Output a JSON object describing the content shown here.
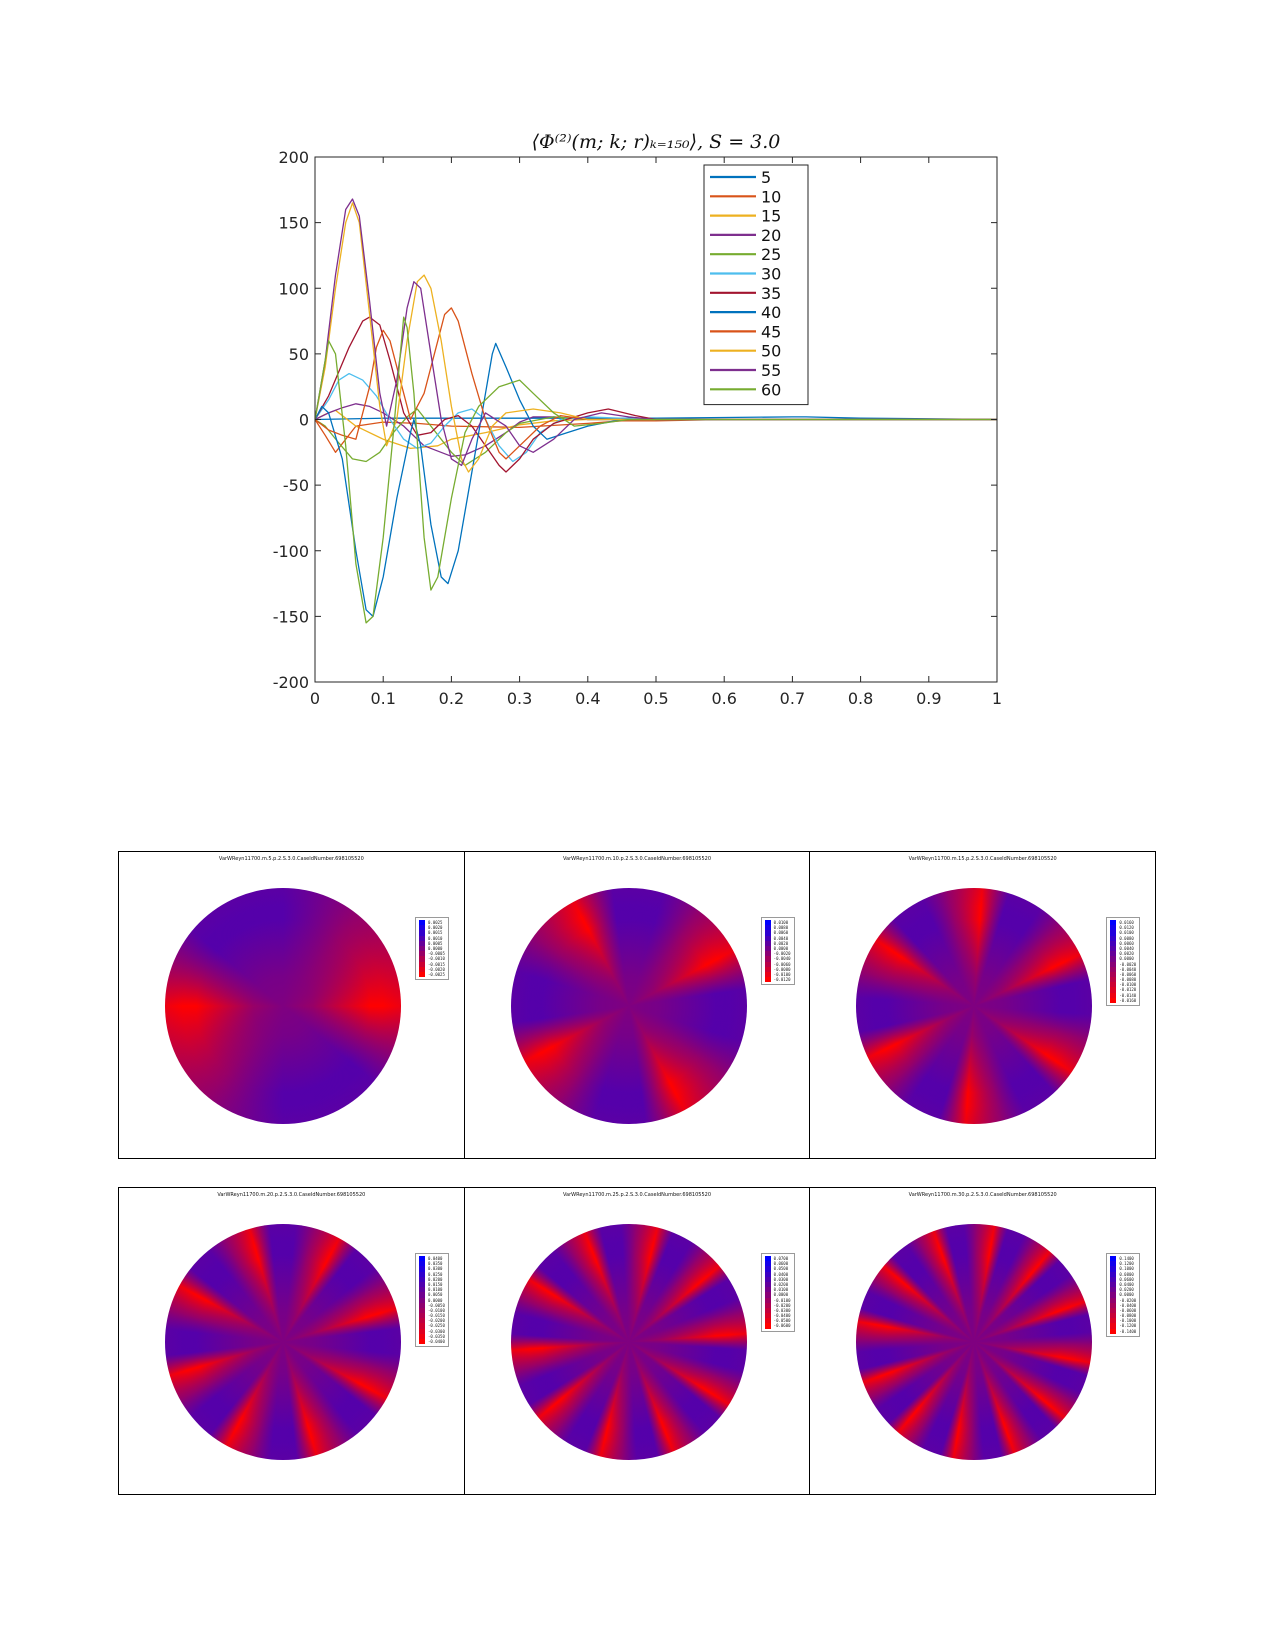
{
  "chart_data": {
    "type": "line",
    "title": "⟨Φ⁽²⁾(m; k; r)ₖ₌₁₅₀⟩, S = 3.0",
    "xlabel": "",
    "ylabel": "",
    "xlim": [
      0,
      1
    ],
    "ylim": [
      -200,
      200
    ],
    "x_ticks": [
      "0",
      "0.1",
      "0.2",
      "0.3",
      "0.4",
      "0.5",
      "0.6",
      "0.7",
      "0.8",
      "0.9",
      "1"
    ],
    "y_ticks": [
      "200",
      "150",
      "100",
      "50",
      "0",
      "-50",
      "-100",
      "-150",
      "-200"
    ],
    "grid": false,
    "legend_position": "top-right",
    "series": [
      {
        "name": "5",
        "color": "#0072BD",
        "points": [
          [
            0,
            0
          ],
          [
            0.1,
            1
          ],
          [
            0.2,
            1
          ],
          [
            0.3,
            1
          ],
          [
            0.4,
            1
          ],
          [
            0.5,
            1
          ],
          [
            0.6,
            1.5
          ],
          [
            0.7,
            2
          ],
          [
            0.72,
            2
          ],
          [
            0.8,
            1
          ],
          [
            0.9,
            0.5
          ],
          [
            1,
            0
          ]
        ]
      },
      {
        "name": "10",
        "color": "#D95319",
        "points": [
          [
            0,
            0
          ],
          [
            0.015,
            -12
          ],
          [
            0.03,
            -25
          ],
          [
            0.06,
            -5
          ],
          [
            0.1,
            -2
          ],
          [
            0.15,
            -3
          ],
          [
            0.2,
            -5
          ],
          [
            0.3,
            -6
          ],
          [
            0.4,
            -3
          ],
          [
            0.45,
            -1
          ],
          [
            0.5,
            -1
          ],
          [
            0.6,
            0
          ],
          [
            1,
            0
          ]
        ]
      },
      {
        "name": "15",
        "color": "#EDB120",
        "points": [
          [
            0,
            0
          ],
          [
            0.015,
            4
          ],
          [
            0.03,
            7
          ],
          [
            0.06,
            -5
          ],
          [
            0.1,
            -15
          ],
          [
            0.14,
            -22
          ],
          [
            0.18,
            -20
          ],
          [
            0.2,
            -15
          ],
          [
            0.25,
            -10
          ],
          [
            0.3,
            -4
          ],
          [
            0.35,
            -1
          ],
          [
            0.4,
            0
          ],
          [
            1,
            0
          ]
        ]
      },
      {
        "name": "20",
        "color": "#7E2F8E",
        "points": [
          [
            0,
            0
          ],
          [
            0.02,
            5
          ],
          [
            0.04,
            9
          ],
          [
            0.06,
            12
          ],
          [
            0.08,
            10
          ],
          [
            0.1,
            5
          ],
          [
            0.13,
            -5
          ],
          [
            0.16,
            -20
          ],
          [
            0.2,
            -28
          ],
          [
            0.22,
            -27
          ],
          [
            0.25,
            -20
          ],
          [
            0.28,
            -10
          ],
          [
            0.3,
            -2
          ],
          [
            0.32,
            2
          ],
          [
            0.35,
            2
          ],
          [
            0.4,
            0
          ],
          [
            0.5,
            0
          ],
          [
            1,
            0
          ]
        ]
      },
      {
        "name": "25",
        "color": "#77AC30",
        "points": [
          [
            0,
            0
          ],
          [
            0.015,
            -5
          ],
          [
            0.035,
            -18
          ],
          [
            0.055,
            -30
          ],
          [
            0.075,
            -32
          ],
          [
            0.095,
            -25
          ],
          [
            0.115,
            -10
          ],
          [
            0.135,
            2
          ],
          [
            0.15,
            8
          ],
          [
            0.17,
            -5
          ],
          [
            0.2,
            -25
          ],
          [
            0.22,
            -35
          ],
          [
            0.25,
            -25
          ],
          [
            0.28,
            -10
          ],
          [
            0.3,
            -3
          ],
          [
            0.35,
            2
          ],
          [
            0.4,
            0
          ],
          [
            0.5,
            0
          ],
          [
            1,
            0
          ]
        ]
      },
      {
        "name": "30",
        "color": "#4DBEEE",
        "points": [
          [
            0,
            0
          ],
          [
            0.02,
            15
          ],
          [
            0.035,
            30
          ],
          [
            0.05,
            35
          ],
          [
            0.07,
            30
          ],
          [
            0.09,
            18
          ],
          [
            0.11,
            0
          ],
          [
            0.13,
            -15
          ],
          [
            0.15,
            -22
          ],
          [
            0.17,
            -18
          ],
          [
            0.19,
            -5
          ],
          [
            0.21,
            5
          ],
          [
            0.23,
            8
          ],
          [
            0.25,
            0
          ],
          [
            0.27,
            -20
          ],
          [
            0.29,
            -32
          ],
          [
            0.31,
            -25
          ],
          [
            0.33,
            -10
          ],
          [
            0.36,
            0
          ],
          [
            0.4,
            2
          ],
          [
            0.5,
            0
          ],
          [
            1,
            0
          ]
        ]
      },
      {
        "name": "35",
        "color": "#A2142F",
        "points": [
          [
            0,
            0
          ],
          [
            0.02,
            18
          ],
          [
            0.05,
            55
          ],
          [
            0.07,
            75
          ],
          [
            0.08,
            78
          ],
          [
            0.095,
            72
          ],
          [
            0.11,
            45
          ],
          [
            0.13,
            5
          ],
          [
            0.15,
            -12
          ],
          [
            0.17,
            -10
          ],
          [
            0.19,
            0
          ],
          [
            0.21,
            3
          ],
          [
            0.23,
            -5
          ],
          [
            0.25,
            -20
          ],
          [
            0.27,
            -35
          ],
          [
            0.28,
            -40
          ],
          [
            0.3,
            -30
          ],
          [
            0.32,
            -15
          ],
          [
            0.35,
            -3
          ],
          [
            0.4,
            5
          ],
          [
            0.43,
            8
          ],
          [
            0.47,
            3
          ],
          [
            0.5,
            0
          ],
          [
            1,
            0
          ]
        ]
      },
      {
        "name": "40",
        "color": "#0072BD",
        "points": [
          [
            0,
            0
          ],
          [
            0.01,
            10
          ],
          [
            0.02,
            5
          ],
          [
            0.04,
            -30
          ],
          [
            0.06,
            -100
          ],
          [
            0.075,
            -145
          ],
          [
            0.085,
            -150
          ],
          [
            0.1,
            -120
          ],
          [
            0.12,
            -60
          ],
          [
            0.14,
            -10
          ],
          [
            0.145,
            0
          ],
          [
            0.155,
            -20
          ],
          [
            0.17,
            -80
          ],
          [
            0.185,
            -120
          ],
          [
            0.195,
            -125
          ],
          [
            0.21,
            -100
          ],
          [
            0.23,
            -40
          ],
          [
            0.25,
            20
          ],
          [
            0.26,
            50
          ],
          [
            0.265,
            58
          ],
          [
            0.28,
            40
          ],
          [
            0.3,
            15
          ],
          [
            0.32,
            -5
          ],
          [
            0.34,
            -15
          ],
          [
            0.37,
            -10
          ],
          [
            0.4,
            -5
          ],
          [
            0.45,
            0
          ],
          [
            0.5,
            0
          ],
          [
            1,
            0
          ]
        ]
      },
      {
        "name": "45",
        "color": "#D95319",
        "points": [
          [
            0,
            0
          ],
          [
            0.02,
            -8
          ],
          [
            0.04,
            -12
          ],
          [
            0.06,
            -15
          ],
          [
            0.08,
            25
          ],
          [
            0.09,
            55
          ],
          [
            0.1,
            68
          ],
          [
            0.11,
            60
          ],
          [
            0.13,
            20
          ],
          [
            0.14,
            0
          ],
          [
            0.16,
            20
          ],
          [
            0.18,
            60
          ],
          [
            0.19,
            80
          ],
          [
            0.2,
            85
          ],
          [
            0.21,
            75
          ],
          [
            0.23,
            35
          ],
          [
            0.25,
            0
          ],
          [
            0.27,
            -25
          ],
          [
            0.28,
            -30
          ],
          [
            0.3,
            -20
          ],
          [
            0.33,
            -5
          ],
          [
            0.36,
            3
          ],
          [
            0.4,
            0
          ],
          [
            1,
            0
          ]
        ]
      },
      {
        "name": "50",
        "color": "#EDB120",
        "points": [
          [
            0,
            0
          ],
          [
            0.015,
            40
          ],
          [
            0.03,
            100
          ],
          [
            0.045,
            150
          ],
          [
            0.055,
            165
          ],
          [
            0.065,
            150
          ],
          [
            0.08,
            80
          ],
          [
            0.095,
            10
          ],
          [
            0.105,
            -20
          ],
          [
            0.12,
            0
          ],
          [
            0.135,
            60
          ],
          [
            0.15,
            105
          ],
          [
            0.16,
            110
          ],
          [
            0.17,
            100
          ],
          [
            0.185,
            60
          ],
          [
            0.2,
            10
          ],
          [
            0.215,
            -30
          ],
          [
            0.225,
            -40
          ],
          [
            0.24,
            -30
          ],
          [
            0.26,
            -5
          ],
          [
            0.28,
            5
          ],
          [
            0.32,
            8
          ],
          [
            0.36,
            5
          ],
          [
            0.4,
            0
          ],
          [
            0.5,
            0
          ],
          [
            1,
            0
          ]
        ]
      },
      {
        "name": "55",
        "color": "#7E2F8E",
        "points": [
          [
            0,
            0
          ],
          [
            0.015,
            45
          ],
          [
            0.03,
            110
          ],
          [
            0.045,
            160
          ],
          [
            0.055,
            168
          ],
          [
            0.065,
            155
          ],
          [
            0.08,
            90
          ],
          [
            0.095,
            20
          ],
          [
            0.105,
            -5
          ],
          [
            0.12,
            30
          ],
          [
            0.135,
            85
          ],
          [
            0.145,
            105
          ],
          [
            0.155,
            100
          ],
          [
            0.17,
            50
          ],
          [
            0.185,
            0
          ],
          [
            0.2,
            -30
          ],
          [
            0.215,
            -35
          ],
          [
            0.23,
            -15
          ],
          [
            0.25,
            5
          ],
          [
            0.28,
            -5
          ],
          [
            0.3,
            -20
          ],
          [
            0.32,
            -25
          ],
          [
            0.35,
            -15
          ],
          [
            0.38,
            0
          ],
          [
            0.42,
            5
          ],
          [
            0.46,
            2
          ],
          [
            0.5,
            0
          ],
          [
            1,
            0
          ]
        ]
      },
      {
        "name": "60",
        "color": "#77AC30",
        "points": [
          [
            0,
            0
          ],
          [
            0.01,
            30
          ],
          [
            0.02,
            60
          ],
          [
            0.03,
            50
          ],
          [
            0.045,
            -20
          ],
          [
            0.06,
            -110
          ],
          [
            0.075,
            -155
          ],
          [
            0.085,
            -150
          ],
          [
            0.1,
            -90
          ],
          [
            0.115,
            -10
          ],
          [
            0.125,
            50
          ],
          [
            0.13,
            78
          ],
          [
            0.135,
            70
          ],
          [
            0.145,
            20
          ],
          [
            0.16,
            -90
          ],
          [
            0.17,
            -130
          ],
          [
            0.18,
            -120
          ],
          [
            0.2,
            -60
          ],
          [
            0.22,
            -10
          ],
          [
            0.24,
            10
          ],
          [
            0.27,
            25
          ],
          [
            0.3,
            30
          ],
          [
            0.32,
            20
          ],
          [
            0.35,
            5
          ],
          [
            0.38,
            -5
          ],
          [
            0.42,
            -3
          ],
          [
            0.46,
            0
          ],
          [
            0.5,
            0
          ],
          [
            1,
            0
          ]
        ]
      }
    ]
  },
  "panels": [
    {
      "title": "VarWReyn11700.m.5.p.2.S.3.0.CaseIdNumber.698105520",
      "m": 5,
      "colorbar": [
        "0.0025",
        "0.0020",
        "0.0015",
        "0.0010",
        "0.0005",
        "0.0000",
        "-0.0005",
        "-0.0010",
        "-0.0015",
        "-0.0020",
        "-0.0025"
      ]
    },
    {
      "title": "VarWReyn11700.m.10.p.2.S.3.0.CaseIdNumber.698105520",
      "m": 10,
      "colorbar": [
        "0.0100",
        "0.0080",
        "0.0060",
        "0.0040",
        "0.0020",
        "0.0000",
        "-0.0020",
        "-0.0040",
        "-0.0060",
        "-0.0080",
        "-0.0100",
        "-0.0120"
      ]
    },
    {
      "title": "VarWReyn11700.m.15.p.2.S.3.0.CaseIdNumber.698105520",
      "m": 15,
      "colorbar": [
        "0.0160",
        "0.0120",
        "0.0100",
        "0.0080",
        "0.0060",
        "0.0040",
        "0.0020",
        "0.0000",
        "-0.0020",
        "-0.0040",
        "-0.0060",
        "-0.0080",
        "-0.0100",
        "-0.0120",
        "-0.0140",
        "-0.0160"
      ]
    },
    {
      "title": "VarWReyn11700.m.20.p.2.S.3.0.CaseIdNumber.698105520",
      "m": 20,
      "colorbar": [
        "0.0400",
        "0.0350",
        "0.0300",
        "0.0250",
        "0.0200",
        "0.0150",
        "0.0100",
        "0.0050",
        "0.0000",
        "-0.0050",
        "-0.0100",
        "-0.0150",
        "-0.0200",
        "-0.0250",
        "-0.0300",
        "-0.0350",
        "-0.0400"
      ]
    },
    {
      "title": "VarWReyn11700.m.25.p.2.S.3.0.CaseIdNumber.698105520",
      "m": 25,
      "colorbar": [
        "0.0700",
        "0.0600",
        "0.0500",
        "0.0400",
        "0.0300",
        "0.0200",
        "0.0100",
        "0.0000",
        "-0.0100",
        "-0.0200",
        "-0.0300",
        "-0.0400",
        "-0.0500",
        "-0.0600"
      ]
    },
    {
      "title": "VarWReyn11700.m.30.p.2.S.3.0.CaseIdNumber.698105520",
      "m": 30,
      "colorbar": [
        "0.1400",
        "0.1200",
        "0.1000",
        "0.0800",
        "0.0600",
        "0.0400",
        "0.0200",
        "0.0000",
        "-0.0200",
        "-0.0400",
        "-0.0600",
        "-0.0800",
        "-0.1000",
        "-0.1200",
        "-0.1400"
      ]
    }
  ],
  "colors": {
    "positive": "#0000ff",
    "negative": "#ff0000",
    "mid": "#7f0080"
  }
}
